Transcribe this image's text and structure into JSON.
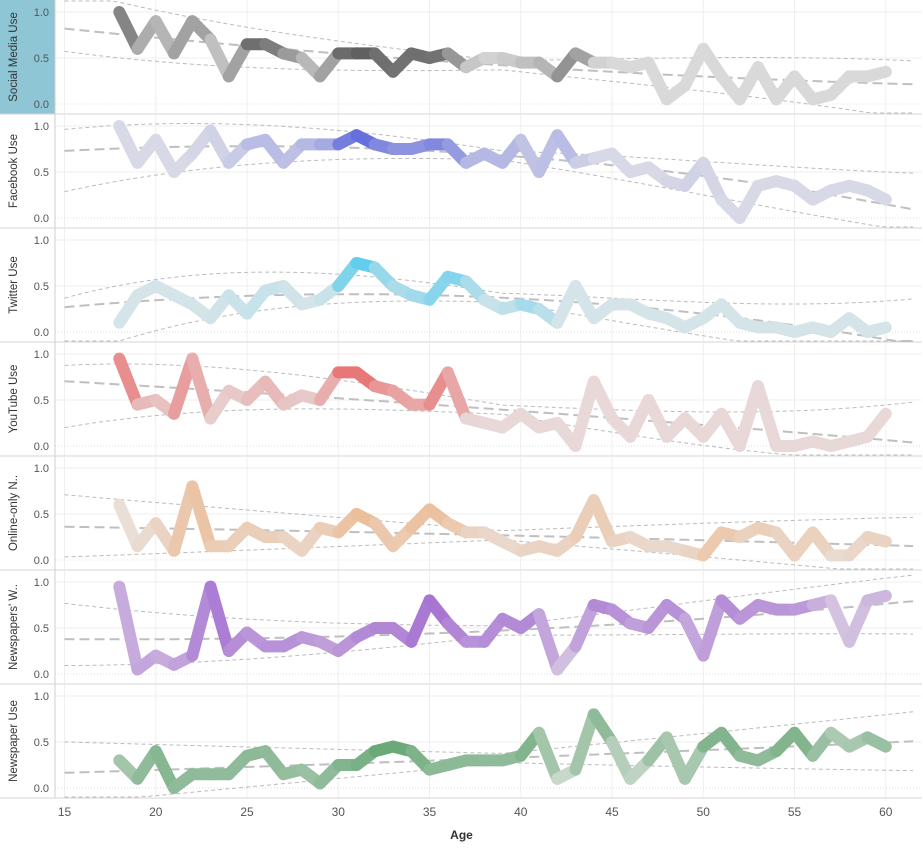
{
  "chart_data": {
    "type": "line",
    "x_label": "Age",
    "x_range": [
      15,
      60
    ],
    "x_ticks": [
      15,
      20,
      25,
      30,
      35,
      40,
      45,
      50,
      55,
      60
    ],
    "y_range": [
      0,
      1
    ],
    "y_ticks": [
      "0.0",
      "0.5",
      "1.0"
    ],
    "grid": true,
    "trend_lines": true,
    "x": [
      18,
      19,
      20,
      21,
      22,
      23,
      24,
      25,
      26,
      27,
      28,
      29,
      30,
      31,
      32,
      33,
      34,
      35,
      36,
      37,
      38,
      39,
      40,
      41,
      42,
      43,
      44,
      45,
      46,
      47,
      48,
      49,
      50,
      51,
      52,
      53,
      54,
      55,
      56,
      57,
      58,
      59,
      60
    ],
    "panels": [
      {
        "label": "Social Media Use",
        "selected": true,
        "color": "#555555",
        "values": [
          1.0,
          0.6,
          0.9,
          0.55,
          0.9,
          0.7,
          0.3,
          0.65,
          0.65,
          0.55,
          0.5,
          0.3,
          0.55,
          0.55,
          0.55,
          0.35,
          0.55,
          0.5,
          0.55,
          0.4,
          0.5,
          0.5,
          0.45,
          0.45,
          0.3,
          0.55,
          0.45,
          0.45,
          0.4,
          0.45,
          0.05,
          0.2,
          0.6,
          0.3,
          0.05,
          0.4,
          0.05,
          0.3,
          0.05,
          0.1,
          0.3,
          0.3,
          0.35
        ],
        "alpha": [
          0.85,
          0.5,
          0.3,
          0.4,
          0.55,
          0.4,
          0.15,
          0.8,
          0.85,
          0.6,
          0.45,
          0.2,
          0.75,
          0.95,
          0.9,
          0.75,
          0.85,
          0.8,
          0.8,
          0.3,
          0.15,
          0.15,
          0.25,
          0.3,
          0.4,
          0.75,
          0.2,
          0.1,
          0.1,
          0.1,
          0.1,
          0.1,
          0.1,
          0.1,
          0.1,
          0.1,
          0.1,
          0.1,
          0.1,
          0.1,
          0.1,
          0.1,
          0.1
        ]
      },
      {
        "label": "Facebook Use",
        "selected": false,
        "color": "#4a55d9",
        "values": [
          1.0,
          0.6,
          0.85,
          0.5,
          0.7,
          0.95,
          0.6,
          0.8,
          0.85,
          0.6,
          0.8,
          0.8,
          0.8,
          0.9,
          0.8,
          0.75,
          0.75,
          0.8,
          0.8,
          0.6,
          0.7,
          0.6,
          0.85,
          0.5,
          0.9,
          0.6,
          0.65,
          0.7,
          0.5,
          0.55,
          0.4,
          0.35,
          0.6,
          0.2,
          0.0,
          0.35,
          0.4,
          0.35,
          0.2,
          0.3,
          0.35,
          0.3,
          0.2
        ],
        "alpha": [
          0.1,
          0.1,
          0.1,
          0.1,
          0.1,
          0.15,
          0.15,
          0.25,
          0.35,
          0.25,
          0.3,
          0.35,
          0.5,
          0.95,
          0.7,
          0.6,
          0.55,
          0.6,
          0.7,
          0.35,
          0.3,
          0.35,
          0.3,
          0.2,
          0.35,
          0.25,
          0.1,
          0.1,
          0.1,
          0.1,
          0.1,
          0.15,
          0.15,
          0.1,
          0.1,
          0.1,
          0.1,
          0.1,
          0.1,
          0.1,
          0.1,
          0.1,
          0.1
        ]
      },
      {
        "label": "Twitter Use",
        "selected": false,
        "color": "#29c3ef",
        "values": [
          0.1,
          0.4,
          0.5,
          0.4,
          0.3,
          0.15,
          0.4,
          0.2,
          0.45,
          0.5,
          0.3,
          0.35,
          0.5,
          0.75,
          0.7,
          0.5,
          0.4,
          0.35,
          0.6,
          0.55,
          0.35,
          0.25,
          0.3,
          0.25,
          0.1,
          0.5,
          0.15,
          0.3,
          0.3,
          0.2,
          0.15,
          0.05,
          0.15,
          0.3,
          0.1,
          0.05,
          0.05,
          0.0,
          0.05,
          0.0,
          0.15,
          0.0,
          0.05
        ],
        "alpha": [
          0.1,
          0.1,
          0.1,
          0.1,
          0.1,
          0.1,
          0.15,
          0.15,
          0.2,
          0.15,
          0.1,
          0.1,
          0.25,
          0.85,
          0.55,
          0.3,
          0.35,
          0.4,
          0.6,
          0.45,
          0.2,
          0.15,
          0.3,
          0.4,
          0.1,
          0.1,
          0.1,
          0.1,
          0.1,
          0.1,
          0.1,
          0.1,
          0.1,
          0.1,
          0.1,
          0.1,
          0.1,
          0.1,
          0.1,
          0.1,
          0.1,
          0.1,
          0.1
        ]
      },
      {
        "label": "YouTube Use",
        "selected": false,
        "color": "#e84c4c",
        "values": [
          0.95,
          0.45,
          0.5,
          0.35,
          0.95,
          0.3,
          0.6,
          0.5,
          0.7,
          0.45,
          0.55,
          0.5,
          0.8,
          0.8,
          0.65,
          0.6,
          0.45,
          0.45,
          0.8,
          0.3,
          0.25,
          0.2,
          0.35,
          0.2,
          0.25,
          0.0,
          0.7,
          0.3,
          0.1,
          0.5,
          0.1,
          0.3,
          0.1,
          0.35,
          0.0,
          0.65,
          0.0,
          0.0,
          0.05,
          0.0,
          0.05,
          0.1,
          0.35
        ],
        "alpha": [
          0.7,
          0.45,
          0.15,
          0.35,
          0.6,
          0.15,
          0.2,
          0.2,
          0.35,
          0.25,
          0.2,
          0.2,
          0.55,
          0.9,
          0.55,
          0.5,
          0.4,
          0.45,
          0.7,
          0.15,
          0.1,
          0.1,
          0.1,
          0.1,
          0.1,
          0.1,
          0.1,
          0.1,
          0.1,
          0.1,
          0.1,
          0.1,
          0.1,
          0.1,
          0.1,
          0.1,
          0.1,
          0.1,
          0.1,
          0.1,
          0.1,
          0.1,
          0.1
        ]
      },
      {
        "label": "Online-only News Sites Use",
        "selected": false,
        "color": "#ef9d5c",
        "values": [
          0.6,
          0.15,
          0.4,
          0.1,
          0.8,
          0.15,
          0.15,
          0.35,
          0.25,
          0.25,
          0.1,
          0.35,
          0.3,
          0.5,
          0.4,
          0.15,
          0.35,
          0.55,
          0.4,
          0.3,
          0.3,
          0.2,
          0.1,
          0.15,
          0.1,
          0.25,
          0.65,
          0.2,
          0.25,
          0.15,
          0.15,
          0.1,
          0.05,
          0.3,
          0.25,
          0.35,
          0.3,
          0.05,
          0.3,
          0.05,
          0.05,
          0.25,
          0.2
        ],
        "alpha": [
          0.1,
          0.15,
          0.2,
          0.35,
          0.5,
          0.45,
          0.3,
          0.35,
          0.35,
          0.3,
          0.2,
          0.35,
          0.35,
          0.6,
          0.5,
          0.35,
          0.45,
          0.55,
          0.5,
          0.3,
          0.25,
          0.2,
          0.2,
          0.3,
          0.25,
          0.3,
          0.4,
          0.3,
          0.25,
          0.2,
          0.2,
          0.2,
          0.3,
          0.5,
          0.3,
          0.3,
          0.35,
          0.2,
          0.4,
          0.2,
          0.15,
          0.3,
          0.25
        ]
      },
      {
        "label": "Newspapers' Web Sites Use",
        "selected": false,
        "color": "#8c44c9",
        "values": [
          0.95,
          0.05,
          0.2,
          0.1,
          0.2,
          0.95,
          0.25,
          0.45,
          0.3,
          0.3,
          0.4,
          0.35,
          0.25,
          0.4,
          0.5,
          0.5,
          0.35,
          0.8,
          0.55,
          0.35,
          0.35,
          0.6,
          0.5,
          0.65,
          0.05,
          0.3,
          0.75,
          0.7,
          0.55,
          0.5,
          0.75,
          0.6,
          0.2,
          0.8,
          0.6,
          0.75,
          0.7,
          0.7,
          0.75,
          0.8,
          0.35,
          0.8,
          0.85
        ],
        "alpha": [
          0.3,
          0.45,
          0.35,
          0.4,
          0.45,
          0.7,
          0.6,
          0.5,
          0.5,
          0.55,
          0.5,
          0.45,
          0.45,
          0.55,
          0.6,
          0.6,
          0.6,
          0.75,
          0.65,
          0.55,
          0.5,
          0.6,
          0.55,
          0.6,
          0.2,
          0.3,
          0.55,
          0.6,
          0.45,
          0.45,
          0.55,
          0.5,
          0.3,
          0.6,
          0.5,
          0.5,
          0.5,
          0.5,
          0.45,
          0.25,
          0.2,
          0.3,
          0.3
        ]
      },
      {
        "label": "Newspaper Use",
        "selected": false,
        "color": "#2f8a43",
        "values": [
          0.3,
          0.1,
          0.4,
          0.0,
          0.15,
          0.15,
          0.15,
          0.35,
          0.4,
          0.15,
          0.2,
          0.05,
          0.25,
          0.25,
          0.4,
          0.45,
          0.4,
          0.2,
          0.25,
          0.3,
          0.3,
          0.3,
          0.35,
          0.6,
          0.1,
          0.2,
          0.8,
          0.5,
          0.1,
          0.3,
          0.55,
          0.1,
          0.45,
          0.6,
          0.35,
          0.3,
          0.4,
          0.6,
          0.35,
          0.6,
          0.45,
          0.55,
          0.45
        ],
        "alpha": [
          0.35,
          0.4,
          0.55,
          0.5,
          0.45,
          0.5,
          0.45,
          0.5,
          0.5,
          0.45,
          0.45,
          0.4,
          0.55,
          0.55,
          0.65,
          0.7,
          0.65,
          0.5,
          0.5,
          0.5,
          0.5,
          0.45,
          0.5,
          0.6,
          0.15,
          0.2,
          0.55,
          0.4,
          0.15,
          0.3,
          0.5,
          0.2,
          0.5,
          0.6,
          0.5,
          0.45,
          0.5,
          0.6,
          0.5,
          0.35,
          0.3,
          0.4,
          0.45
        ]
      }
    ]
  }
}
